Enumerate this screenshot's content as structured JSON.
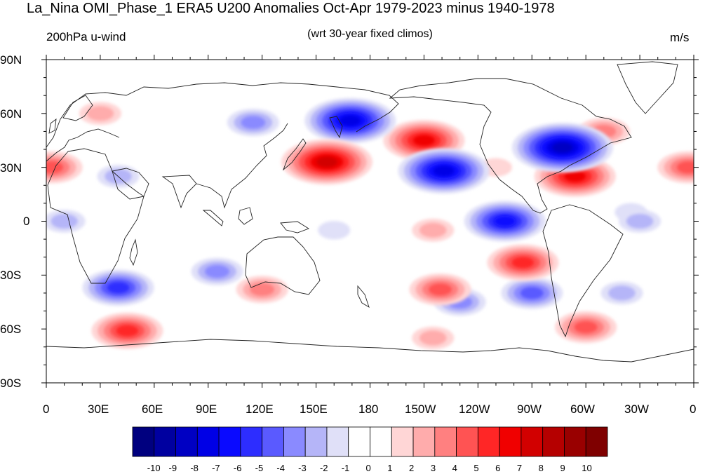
{
  "title": "La_Nina OMI_Phase_1 ERA5 U200 Anomalies Oct-Apr 1979-2023 minus 1940-1978",
  "left_subtitle": "200hPa u-wind",
  "center_subtitle": "(wrt 30-year fixed climos)",
  "right_subtitle": "m/s",
  "lat_labels": [
    "90N",
    "60N",
    "30N",
    "0",
    "30S",
    "60S",
    "90S"
  ],
  "lon_labels": [
    "0",
    "30E",
    "60E",
    "90E",
    "120E",
    "150E",
    "180",
    "150W",
    "120W",
    "90W",
    "60W",
    "30W",
    "0"
  ],
  "colorbar": {
    "labels": [
      "-10",
      "-9",
      "-8",
      "-7",
      "-6",
      "-5",
      "-4",
      "-3",
      "-2",
      "-1",
      "0",
      "1",
      "2",
      "3",
      "4",
      "5",
      "6",
      "7",
      "8",
      "9",
      "10"
    ],
    "colors": [
      "#00007f",
      "#0000a0",
      "#0000c3",
      "#0000e6",
      "#0a0aff",
      "#2d2dff",
      "#5a5aff",
      "#8a8aff",
      "#b5b5f8",
      "#e0e0f8",
      "#ffffff",
      "#ffffff",
      "#ffd6d6",
      "#ffacac",
      "#ff8080",
      "#ff5353",
      "#ff2626",
      "#f00000",
      "#d20000",
      "#b50000",
      "#990000",
      "#7f0000"
    ]
  },
  "anomalies": [
    {
      "lon": 169,
      "lat": 56,
      "v": -7
    },
    {
      "lon": 156,
      "lat": 33,
      "v": 7
    },
    {
      "lon": 210,
      "lat": 45,
      "v": 6
    },
    {
      "lon": 221,
      "lat": 28,
      "v": -7
    },
    {
      "lon": 287,
      "lat": 41,
      "v": -8
    },
    {
      "lon": 294,
      "lat": 25,
      "v": 6
    },
    {
      "lon": 255,
      "lat": 0,
      "v": -6
    },
    {
      "lon": 265,
      "lat": -23,
      "v": 5
    },
    {
      "lon": 219,
      "lat": -38,
      "v": 4
    },
    {
      "lon": 120,
      "lat": -38,
      "v": 3
    },
    {
      "lon": 40,
      "lat": -37,
      "v": -5
    },
    {
      "lon": 95,
      "lat": -28,
      "v": -3
    },
    {
      "lon": 45,
      "lat": -61,
      "v": 5
    },
    {
      "lon": 300,
      "lat": -59,
      "v": 4
    },
    {
      "lon": 3,
      "lat": 30,
      "v": 4
    },
    {
      "lon": 357,
      "lat": 30,
      "v": 4
    },
    {
      "lon": 30,
      "lat": 60,
      "v": 2
    },
    {
      "lon": 310,
      "lat": 50,
      "v": 3
    },
    {
      "lon": 250,
      "lat": 30,
      "v": 1
    },
    {
      "lon": 270,
      "lat": -40,
      "v": -4
    },
    {
      "lon": 320,
      "lat": -40,
      "v": -2
    },
    {
      "lon": 115,
      "lat": 55,
      "v": -3
    },
    {
      "lon": 40,
      "lat": 25,
      "v": -2
    },
    {
      "lon": 10,
      "lat": 0,
      "v": -2
    },
    {
      "lon": 330,
      "lat": 0,
      "v": -2
    },
    {
      "lon": 215,
      "lat": -5,
      "v": 2
    },
    {
      "lon": 160,
      "lat": -5,
      "v": -1
    },
    {
      "lon": 230,
      "lat": -45,
      "v": -3
    },
    {
      "lon": 215,
      "lat": -65,
      "v": 2
    },
    {
      "lon": 325,
      "lat": 5,
      "v": -1
    }
  ]
}
